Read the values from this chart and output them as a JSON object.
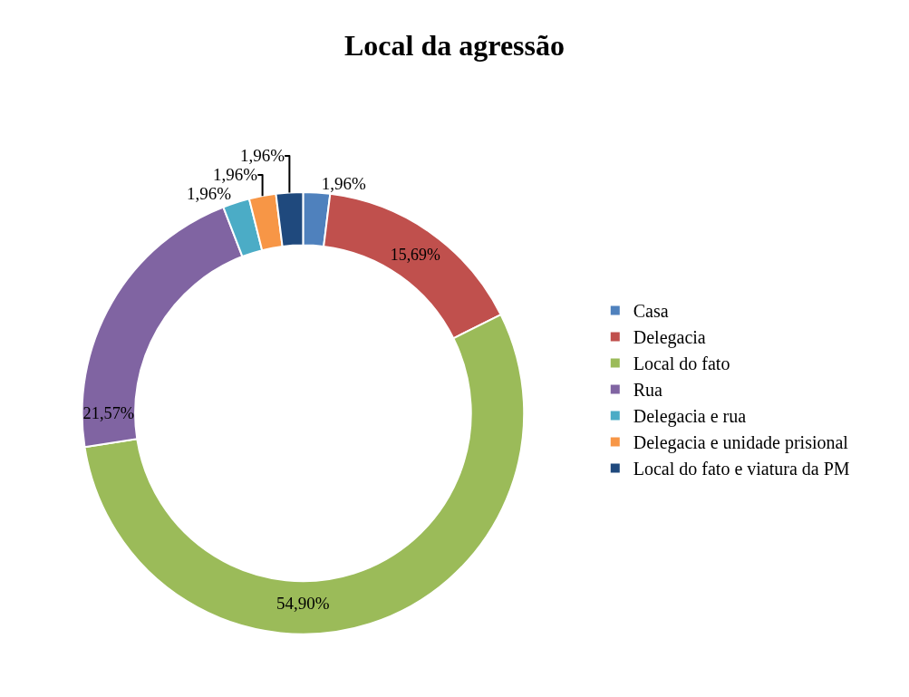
{
  "chart_data": {
    "type": "donut",
    "title": "Local da agressão",
    "categories": [
      "Casa",
      "Delegacia",
      "Local do fato",
      "Rua",
      "Delegacia e rua",
      "Delegacia e unidade prisional",
      "Local do fato e viatura da PM"
    ],
    "values": [
      1.96,
      15.69,
      54.9,
      21.57,
      1.96,
      1.96,
      1.96
    ],
    "value_labels": [
      "1,96%",
      "15,69%",
      "54,90%",
      "21,57%",
      "1,96%",
      "1,96%",
      "1,96%"
    ],
    "colors": [
      "#4f81bd",
      "#c0504d",
      "#9bbb59",
      "#8064a2",
      "#4bacc6",
      "#f79646",
      "#1f497d"
    ],
    "legend": "right"
  }
}
